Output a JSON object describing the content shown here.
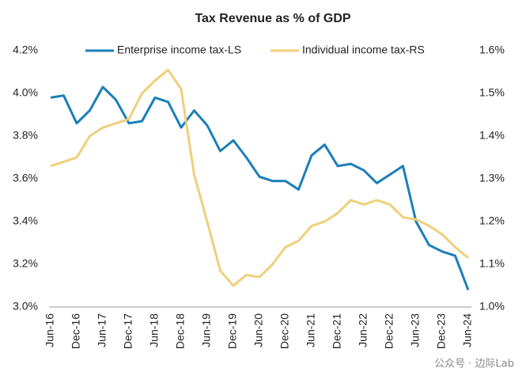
{
  "chart_data": {
    "type": "line",
    "title": "Tax Revenue as % of GDP",
    "watermark": "公众号 · 边际Lab",
    "categories": [
      "Jun-16",
      null,
      "Dec-16",
      null,
      "Jun-17",
      null,
      "Dec-17",
      null,
      "Jun-18",
      null,
      "Dec-18",
      null,
      "Jun-19",
      null,
      "Dec-19",
      null,
      "Jun-20",
      null,
      "Dec-20",
      null,
      "Jun-21",
      null,
      "Dec-21",
      null,
      "Jun-22",
      null,
      "Dec-22",
      null,
      "Jun-23",
      null,
      "Dec-23",
      null,
      "Jun-24"
    ],
    "series": [
      {
        "name": "Enterprise income tax-LS",
        "color": "#1a7fb8",
        "axis": "y",
        "values": [
          3.98,
          3.99,
          3.86,
          3.92,
          4.03,
          3.97,
          3.86,
          3.87,
          3.98,
          3.96,
          3.84,
          3.92,
          3.85,
          3.73,
          3.78,
          3.7,
          3.61,
          3.59,
          3.59,
          3.55,
          3.71,
          3.76,
          3.66,
          3.67,
          3.64,
          3.58,
          3.62,
          3.66,
          3.4,
          3.29,
          3.26,
          3.24,
          3.08
        ]
      },
      {
        "name": "Individual income tax-RS",
        "color": "#f0cf7a",
        "axis": "y2",
        "values": [
          1.33,
          1.34,
          1.35,
          1.4,
          1.42,
          1.43,
          1.44,
          1.5,
          1.53,
          1.555,
          1.51,
          1.31,
          1.2,
          1.085,
          1.05,
          1.075,
          1.07,
          1.1,
          1.14,
          1.155,
          1.19,
          1.2,
          1.22,
          1.25,
          1.24,
          1.25,
          1.24,
          1.21,
          1.205,
          1.19,
          1.17,
          1.14,
          1.115
        ]
      }
    ],
    "ylim": [
      3.0,
      4.2
    ],
    "yticks": [
      {
        "value": 3.0,
        "label": "3.0%"
      },
      {
        "value": 3.2,
        "label": "3.2%"
      },
      {
        "value": 3.4,
        "label": "3.4%"
      },
      {
        "value": 3.6,
        "label": "3.6%"
      },
      {
        "value": 3.8,
        "label": "3.8%"
      },
      {
        "value": 4.0,
        "label": "4.0%"
      },
      {
        "value": 4.2,
        "label": "4.2%"
      }
    ],
    "y2lim": [
      1.0,
      1.6
    ],
    "y2ticks": [
      {
        "value": 1.0,
        "label": "1.0%"
      },
      {
        "value": 1.1,
        "label": "1.1%"
      },
      {
        "value": 1.2,
        "label": "1.2%"
      },
      {
        "value": 1.3,
        "label": "1.3%"
      },
      {
        "value": 1.4,
        "label": "1.4%"
      },
      {
        "value": 1.5,
        "label": "1.5%"
      },
      {
        "value": 1.6,
        "label": "1.6%"
      }
    ],
    "legend": "top"
  }
}
